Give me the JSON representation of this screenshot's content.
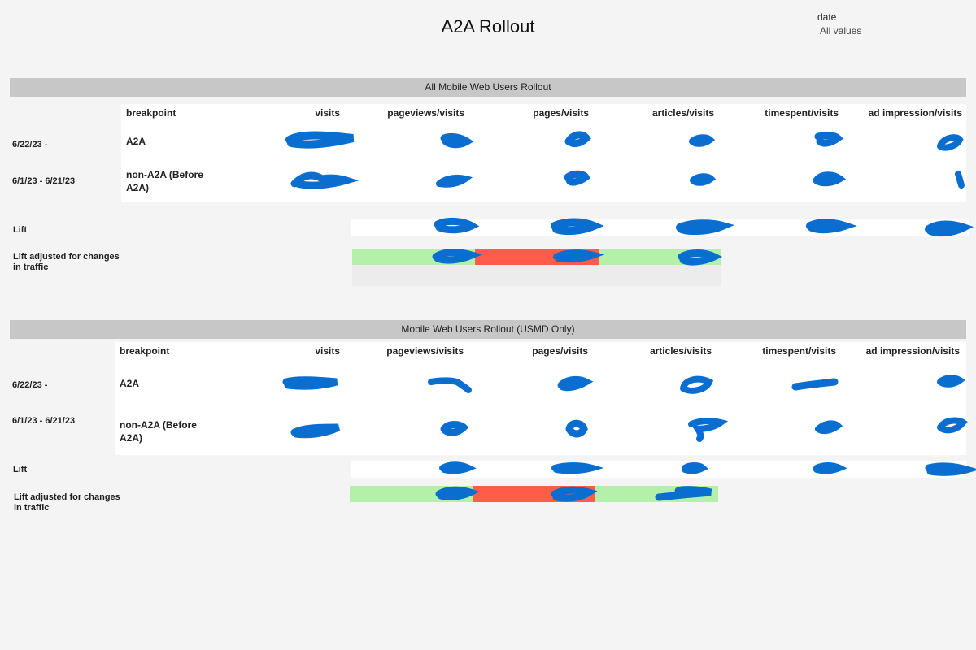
{
  "dashboard": {
    "title": "A2A Rollout",
    "filter": {
      "label": "date",
      "value": "All values"
    }
  },
  "columns": {
    "breakpoint": "breakpoint",
    "visits": "visits",
    "pageviews": "pageviews/visits",
    "pages": "pages/visits",
    "articles": "articles/visits",
    "timespent": "timespent/visits",
    "ad": "ad impression/visits"
  },
  "sections": [
    {
      "title": "All Mobile Web Users Rollout",
      "rows": [
        {
          "date": "6/22/23 -",
          "breakpoint": "A2A"
        },
        {
          "date": "6/1/23 - 6/21/23",
          "breakpoint": "non-A2A (Before A2A)"
        }
      ],
      "lift_label": "Lift",
      "lift_adjusted_label": "Lift adjusted for changes in traffic"
    },
    {
      "title": "Mobile Web Users Rollout (USMD Only)",
      "rows": [
        {
          "date": "6/22/23 -",
          "breakpoint": "A2A"
        },
        {
          "date": "6/1/23 - 6/21/23",
          "breakpoint": "non-A2A (Before A2A)"
        }
      ],
      "lift_label": "Lift",
      "lift_adjusted_label": "Lift adjusted for changes in traffic"
    }
  ],
  "colors": {
    "background": "#f4f4f4",
    "section_bar": "#c7c7c7",
    "positive": "#b4f0aa",
    "negative": "#ff5c4a",
    "redaction": "#0a6ed1"
  }
}
